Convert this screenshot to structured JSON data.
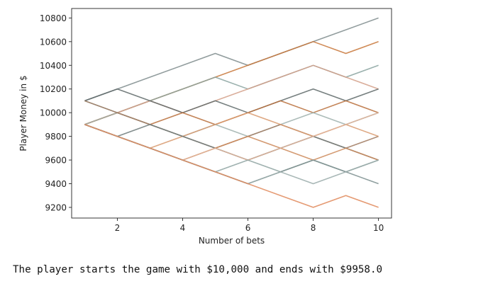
{
  "chart_data": {
    "type": "line",
    "xlabel": "Number of bets",
    "ylabel": "Player Money in $",
    "xlim": [
      0.6,
      10.4
    ],
    "ylim": [
      9110,
      10880
    ],
    "xticks": [
      2,
      4,
      6,
      8,
      10
    ],
    "yticks": [
      9200,
      9400,
      9600,
      9800,
      10000,
      10200,
      10400,
      10600,
      10800
    ],
    "grid": false,
    "legend": "none",
    "x": [
      1,
      2,
      3,
      4,
      5,
      6,
      7,
      8,
      9,
      10
    ],
    "series": [
      {
        "color": "#7f8c8d",
        "values": [
          10100,
          10200,
          10300,
          10400,
          10500,
          10400,
          10500,
          10600,
          10700,
          10800
        ]
      },
      {
        "color": "#c8773a",
        "values": [
          9900,
          10000,
          10100,
          10200,
          10300,
          10400,
          10500,
          10600,
          10500,
          10600
        ]
      },
      {
        "color": "#8aa3a0",
        "values": [
          10100,
          10000,
          10100,
          10200,
          10300,
          10200,
          10300,
          10400,
          10300,
          10400
        ]
      },
      {
        "color": "#d4a08a",
        "values": [
          9900,
          10000,
          10100,
          10000,
          10100,
          10200,
          10300,
          10400,
          10300,
          10200
        ]
      },
      {
        "color": "#5f6a6a",
        "values": [
          10100,
          10200,
          10100,
          10000,
          10100,
          10000,
          10100,
          10200,
          10100,
          10200
        ]
      },
      {
        "color": "#b86f3b",
        "values": [
          9900,
          10000,
          9900,
          10000,
          9900,
          10000,
          10100,
          10000,
          10100,
          10000
        ]
      },
      {
        "color": "#9fb0ad",
        "values": [
          9900,
          10000,
          9900,
          9800,
          9900,
          9800,
          9900,
          10000,
          9900,
          10000
        ]
      },
      {
        "color": "#a07a60",
        "values": [
          10100,
          10000,
          9900,
          9800,
          9700,
          9800,
          9900,
          9800,
          9700,
          9800
        ]
      },
      {
        "color": "#d89a6e",
        "values": [
          9900,
          9800,
          9700,
          9800,
          9900,
          10000,
          9900,
          9800,
          9900,
          9800
        ]
      },
      {
        "color": "#6e7b7b",
        "values": [
          9900,
          9800,
          9900,
          9800,
          9700,
          9600,
          9700,
          9800,
          9700,
          9600
        ]
      },
      {
        "color": "#cc8a5a",
        "values": [
          9900,
          9800,
          9700,
          9600,
          9700,
          9800,
          9700,
          9600,
          9700,
          9600
        ]
      },
      {
        "color": "#e0b49a",
        "values": [
          9900,
          9800,
          9700,
          9600,
          9700,
          9600,
          9700,
          9800,
          9900,
          10000
        ]
      },
      {
        "color": "#8fa5a2",
        "values": [
          9900,
          9800,
          9700,
          9600,
          9500,
          9600,
          9500,
          9600,
          9500,
          9600
        ]
      },
      {
        "color": "#7d8f8f",
        "values": [
          9900,
          9800,
          9700,
          9600,
          9500,
          9400,
          9500,
          9600,
          9500,
          9400
        ]
      },
      {
        "color": "#9aacaa",
        "values": [
          9900,
          9800,
          9700,
          9600,
          9500,
          9400,
          9500,
          9400,
          9500,
          9600
        ]
      },
      {
        "color": "#e08a5c",
        "values": [
          9900,
          9800,
          9700,
          9600,
          9500,
          9400,
          9300,
          9200,
          9300,
          9200
        ]
      }
    ]
  },
  "caption": "The player starts the game with $10,000 and ends with $9958.0"
}
